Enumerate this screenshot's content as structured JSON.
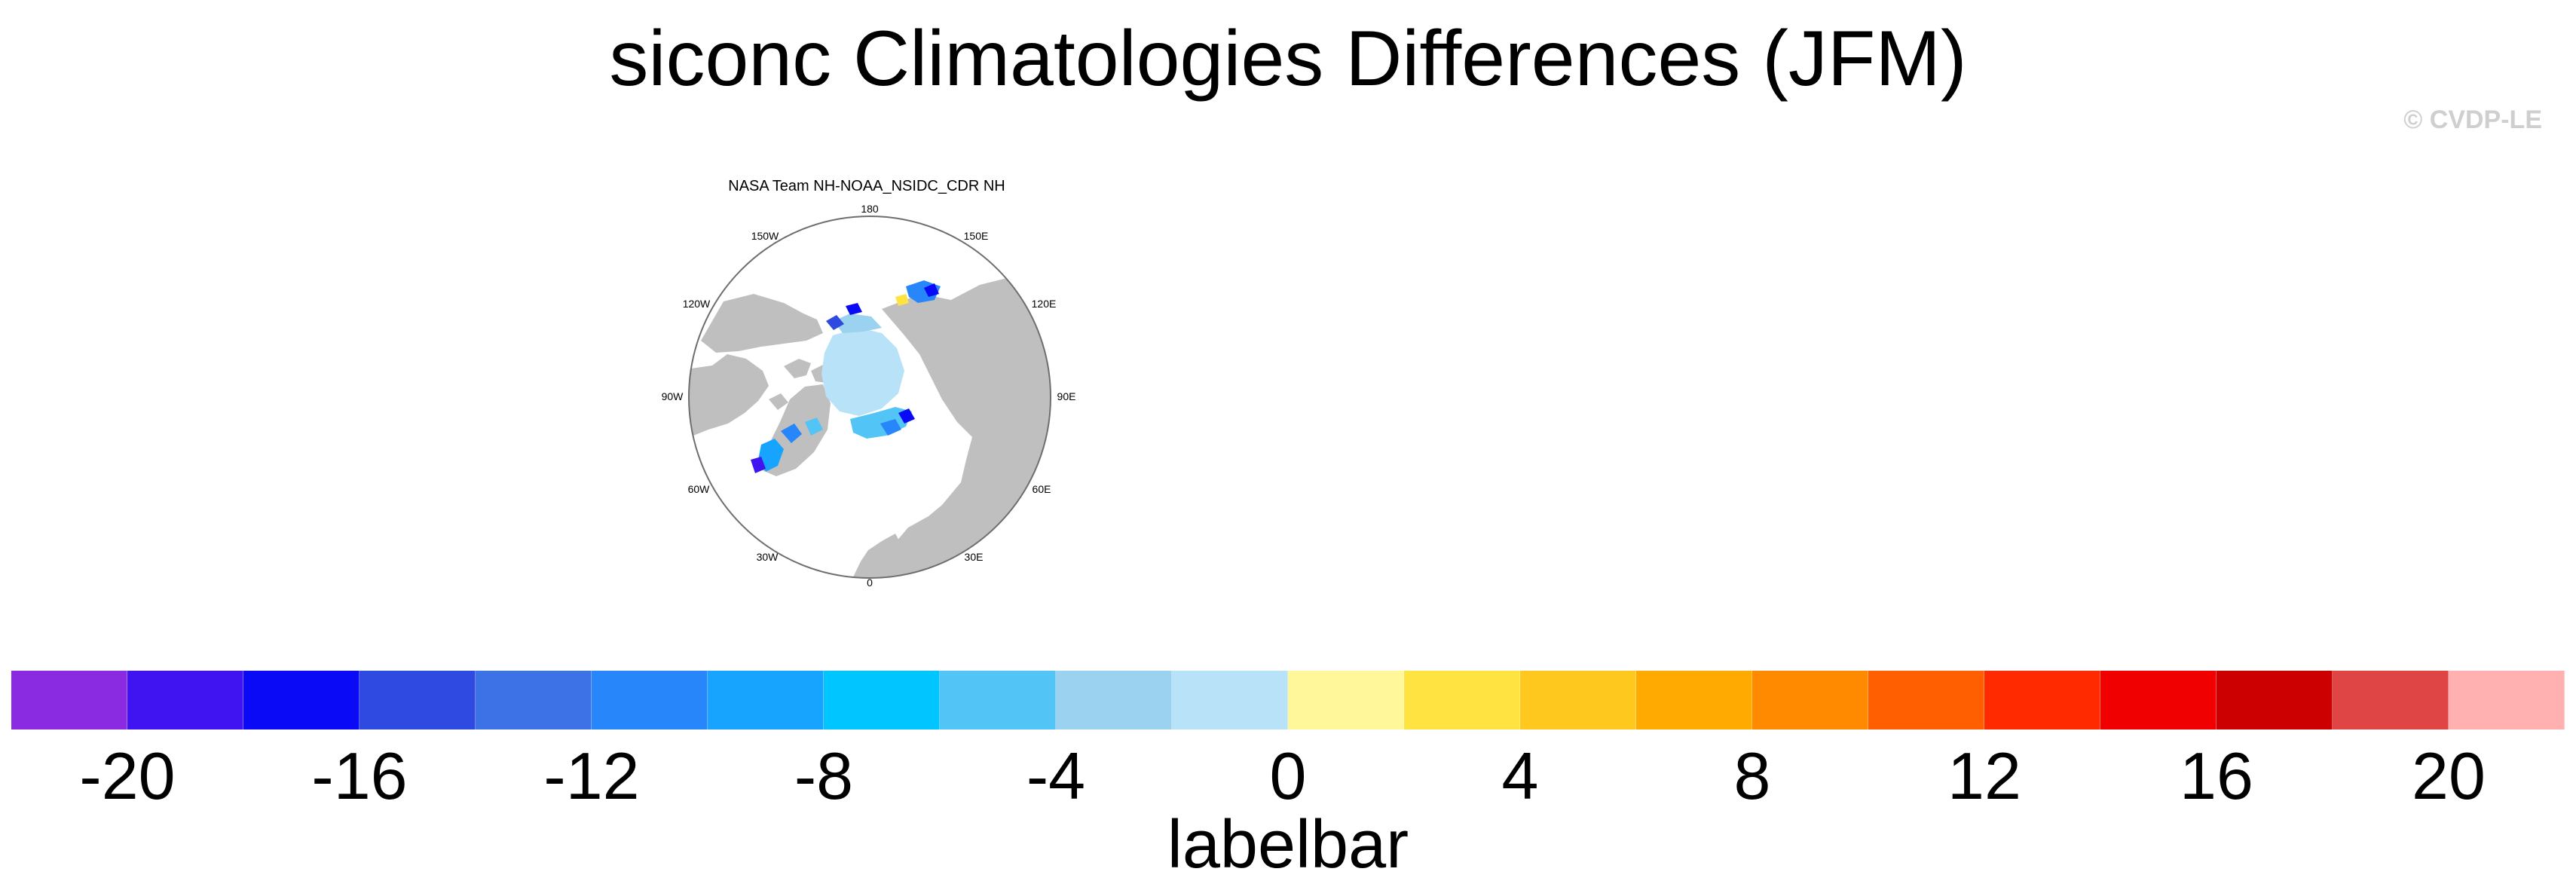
{
  "title": "siconc Climatologies Differences (JFM)",
  "credit": "© CVDP-LE",
  "panel": {
    "title": "NASA Team NH-NOAA_NSIDC_CDR NH",
    "projection": "north-polar-stereographic",
    "land_color": "#bfbfbf",
    "lon_labels": [
      "180",
      "150E",
      "120E",
      "90E",
      "60E",
      "30E",
      "0",
      "30W",
      "60W",
      "90W",
      "120W",
      "150W"
    ]
  },
  "labelbar": {
    "title": "labelbar",
    "colors": [
      "#8a2be2",
      "#3f14f0",
      "#0a0af7",
      "#2f4ae0",
      "#3c72e6",
      "#2686fa",
      "#17a4ff",
      "#00c5ff",
      "#52c4f5",
      "#9bd2f0",
      "#b8e2f7",
      "#fff79a",
      "#ffe340",
      "#ffc81e",
      "#ffaa00",
      "#ff8a00",
      "#ff5f00",
      "#ff2a00",
      "#f00000",
      "#cc0000",
      "#e04545",
      "#ffb0b0"
    ],
    "tick_labels": [
      "-20",
      "-16",
      "-12",
      "-8",
      "-4",
      "0",
      "4",
      "8",
      "12",
      "16",
      "20"
    ]
  }
}
